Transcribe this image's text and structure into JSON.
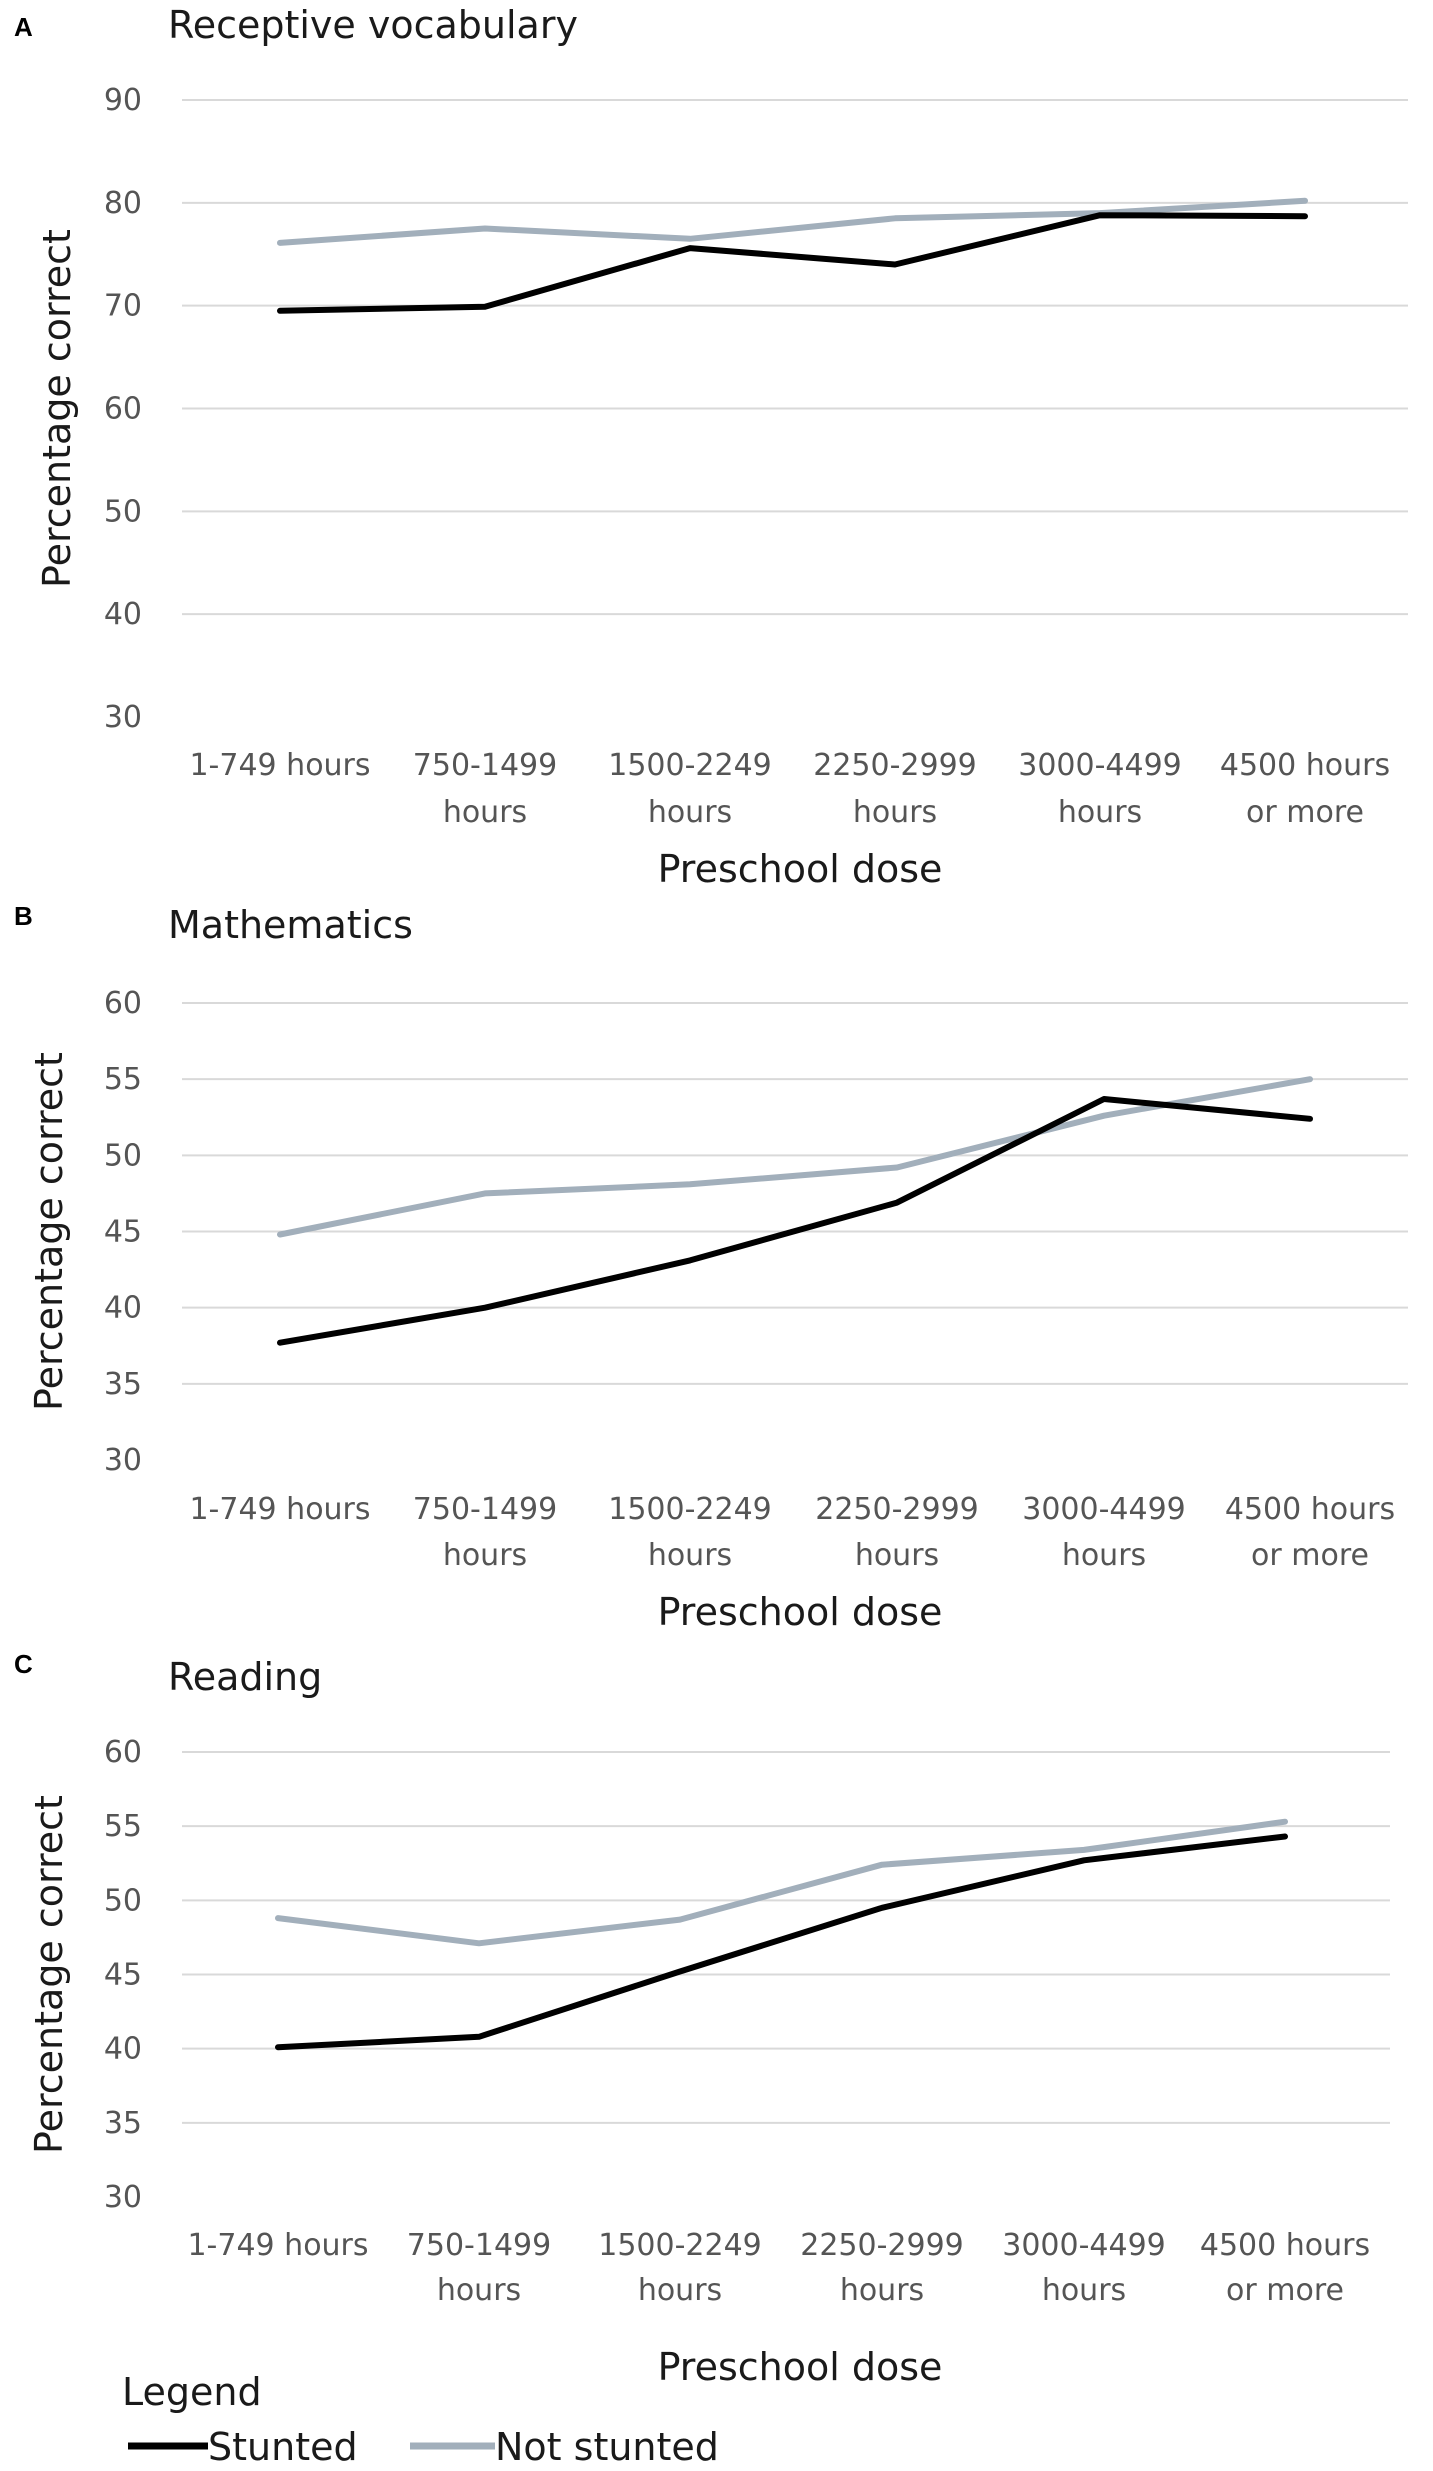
{
  "chart_data": [
    {
      "type": "line",
      "panel": "A",
      "title": "Receptive vocabulary",
      "xlabel": "Preschool dose",
      "ylabel": "Percentage correct",
      "ylim": [
        30,
        90
      ],
      "yticks": [
        30,
        40,
        50,
        60,
        70,
        80,
        90
      ],
      "categories": [
        [
          "1-749 hours"
        ],
        [
          "750-1499",
          "hours"
        ],
        [
          "1500-2249",
          "hours"
        ],
        [
          "2250-2999",
          "hours"
        ],
        [
          "3000-4499",
          "hours"
        ],
        [
          "4500 hours",
          "or more"
        ]
      ],
      "series": [
        {
          "name": "Stunted",
          "color": "#000000",
          "values": [
            69.5,
            69.9,
            75.6,
            74.0,
            78.8,
            78.7
          ]
        },
        {
          "name": "Not stunted",
          "color": "#a2afbb",
          "values": [
            76.1,
            77.5,
            76.5,
            78.5,
            79.0,
            80.2
          ]
        }
      ]
    },
    {
      "type": "line",
      "panel": "B",
      "title": "Mathematics",
      "xlabel": "Preschool dose",
      "ylabel": "Percentage correct",
      "ylim": [
        30,
        60
      ],
      "yticks": [
        30,
        35,
        40,
        45,
        50,
        55,
        60
      ],
      "categories": [
        [
          "1-749 hours"
        ],
        [
          "750-1499",
          "hours"
        ],
        [
          "1500-2249",
          "hours"
        ],
        [
          "2250-2999",
          "hours"
        ],
        [
          "3000-4499",
          "hours"
        ],
        [
          "4500 hours",
          "or more"
        ]
      ],
      "series": [
        {
          "name": "Stunted",
          "color": "#000000",
          "values": [
            37.7,
            40.0,
            43.1,
            46.9,
            53.7,
            52.4
          ]
        },
        {
          "name": "Not stunted",
          "color": "#a2afbb",
          "values": [
            44.8,
            47.5,
            48.1,
            49.2,
            52.6,
            55.0
          ]
        }
      ]
    },
    {
      "type": "line",
      "panel": "C",
      "title": "Reading",
      "xlabel": "Preschool dose",
      "ylabel": "Percentage correct",
      "ylim": [
        30,
        60
      ],
      "yticks": [
        30,
        35,
        40,
        45,
        50,
        55,
        60
      ],
      "categories": [
        [
          "1-749 hours"
        ],
        [
          "750-1499",
          "hours"
        ],
        [
          "1500-2249",
          "hours"
        ],
        [
          "2250-2999",
          "hours"
        ],
        [
          "3000-4499",
          "hours"
        ],
        [
          "4500 hours",
          "or more"
        ]
      ],
      "series": [
        {
          "name": "Stunted",
          "color": "#000000",
          "values": [
            40.1,
            40.8,
            45.2,
            49.5,
            52.7,
            54.3
          ]
        },
        {
          "name": "Not stunted",
          "color": "#a2afbb",
          "values": [
            48.8,
            47.1,
            48.7,
            52.4,
            53.4,
            55.3
          ]
        }
      ]
    }
  ],
  "legend": {
    "title": "Legend",
    "items": [
      {
        "label": "Stunted",
        "color": "#000000"
      },
      {
        "label": "Not stunted",
        "color": "#a2afbb"
      }
    ]
  }
}
